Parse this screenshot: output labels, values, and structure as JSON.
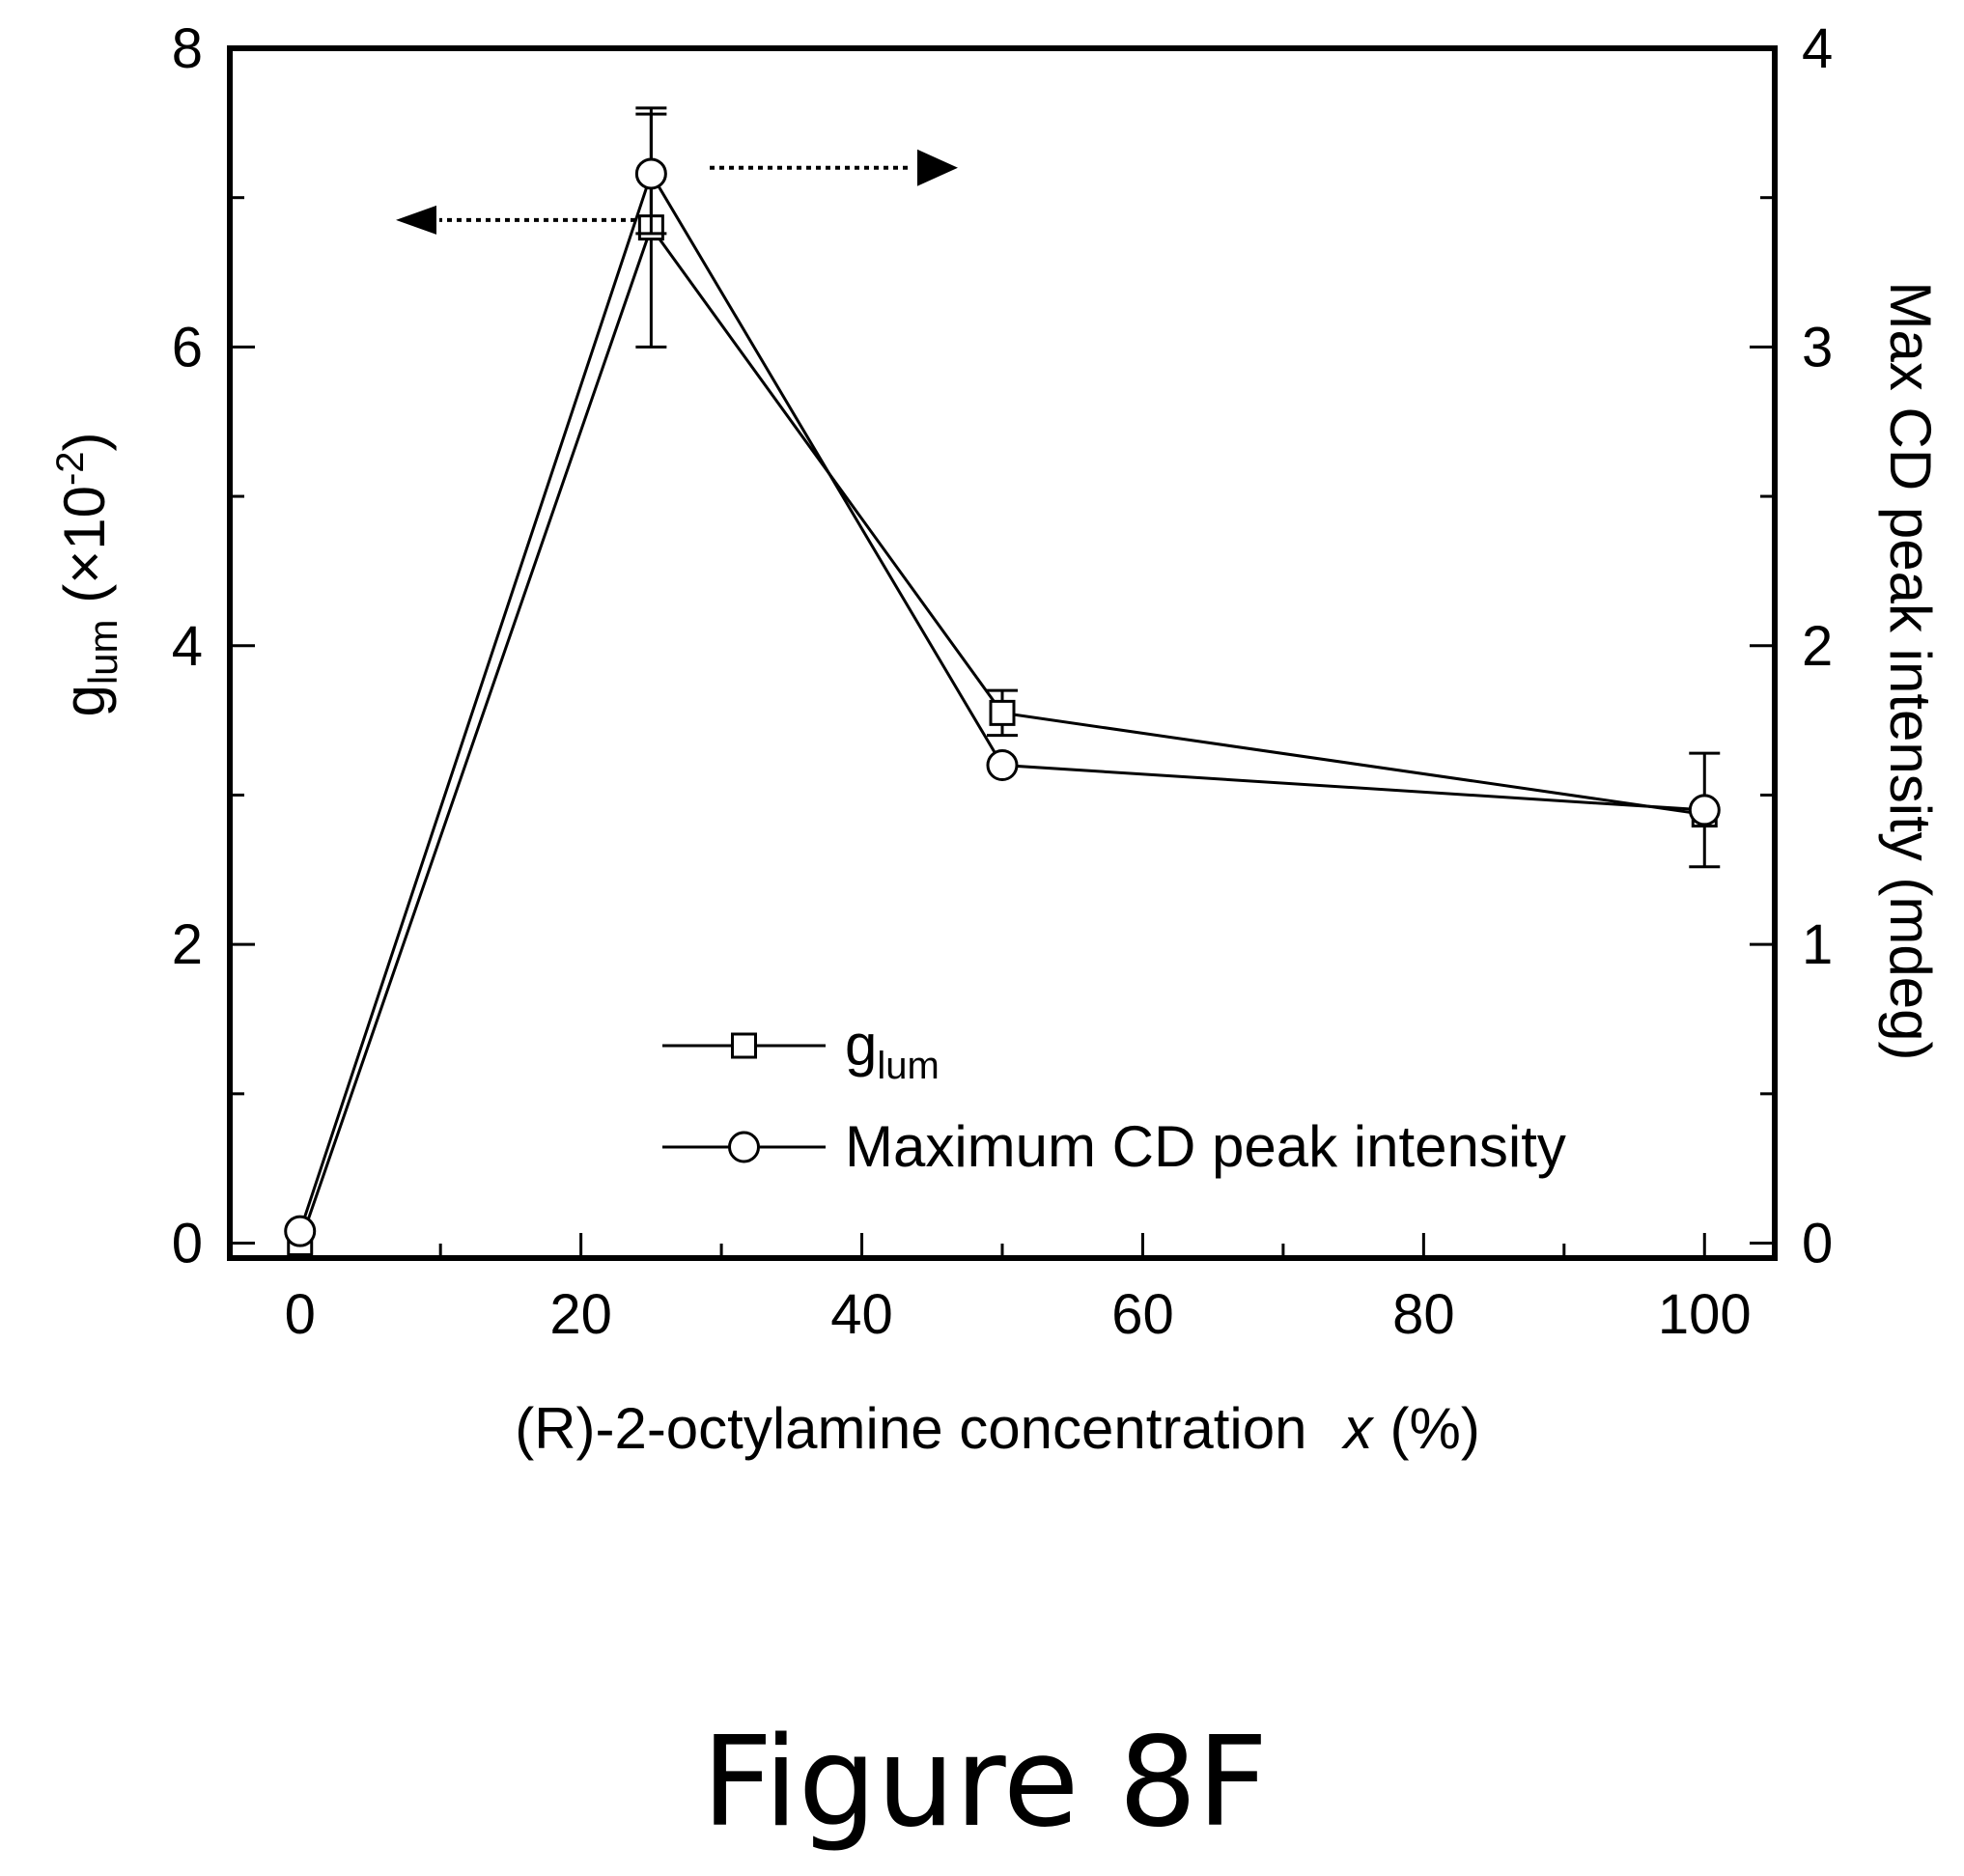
{
  "figure_label": "Figure 8F",
  "chart_data": {
    "type": "line",
    "xlabel": {
      "main": "(R)-2-octylamine concentration",
      "var": "x",
      "unit": "(%)"
    },
    "ylabel_left": {
      "main": "g",
      "sub": "lum",
      "paren_open": " (",
      "mult": "×10",
      "sup": "-2",
      "paren_close": ")"
    },
    "ylabel_right": "Max CD peak intensity (mdeg)",
    "xlim": [
      -5,
      105
    ],
    "ylim_left": [
      -0.1,
      8
    ],
    "ylim_right": [
      -0.05,
      4
    ],
    "xticks": [
      0,
      20,
      40,
      60,
      80,
      100
    ],
    "xtick_labels": [
      "0",
      "20",
      "40",
      "60",
      "80",
      "100"
    ],
    "xminor": [
      10,
      30,
      50,
      70,
      90
    ],
    "yticks_left": [
      0,
      2,
      4,
      6,
      8
    ],
    "ytick_labels_left": [
      "0",
      "2",
      "4",
      "6",
      "8"
    ],
    "yminor_left": [
      1,
      3,
      5,
      7
    ],
    "yticks_right": [
      0,
      1,
      2,
      3,
      4
    ],
    "ytick_labels_right": [
      "0",
      "1",
      "2",
      "3",
      "4"
    ],
    "yminor_right": [
      0.5,
      1.5,
      2.5,
      3.5
    ],
    "series": [
      {
        "name": "g",
        "name_sub": "lum",
        "axis": "left",
        "marker": "square",
        "x": [
          0,
          25,
          50,
          100
        ],
        "y": [
          0.0,
          6.8,
          3.55,
          2.87
        ],
        "err": [
          0.0,
          0.8,
          0.15,
          0.0
        ]
      },
      {
        "name": "Maximum CD peak intensity",
        "axis": "right",
        "marker": "circle",
        "x": [
          0,
          25,
          50,
          100
        ],
        "y": [
          0.04,
          3.58,
          1.6,
          1.45
        ],
        "err": [
          0.0,
          0.2,
          0.0,
          0.19
        ]
      }
    ],
    "legend_position": "lower-right",
    "arrows": [
      {
        "points_to": "left",
        "series": "g"
      },
      {
        "points_to": "right",
        "series": "Maximum CD peak intensity"
      }
    ]
  }
}
